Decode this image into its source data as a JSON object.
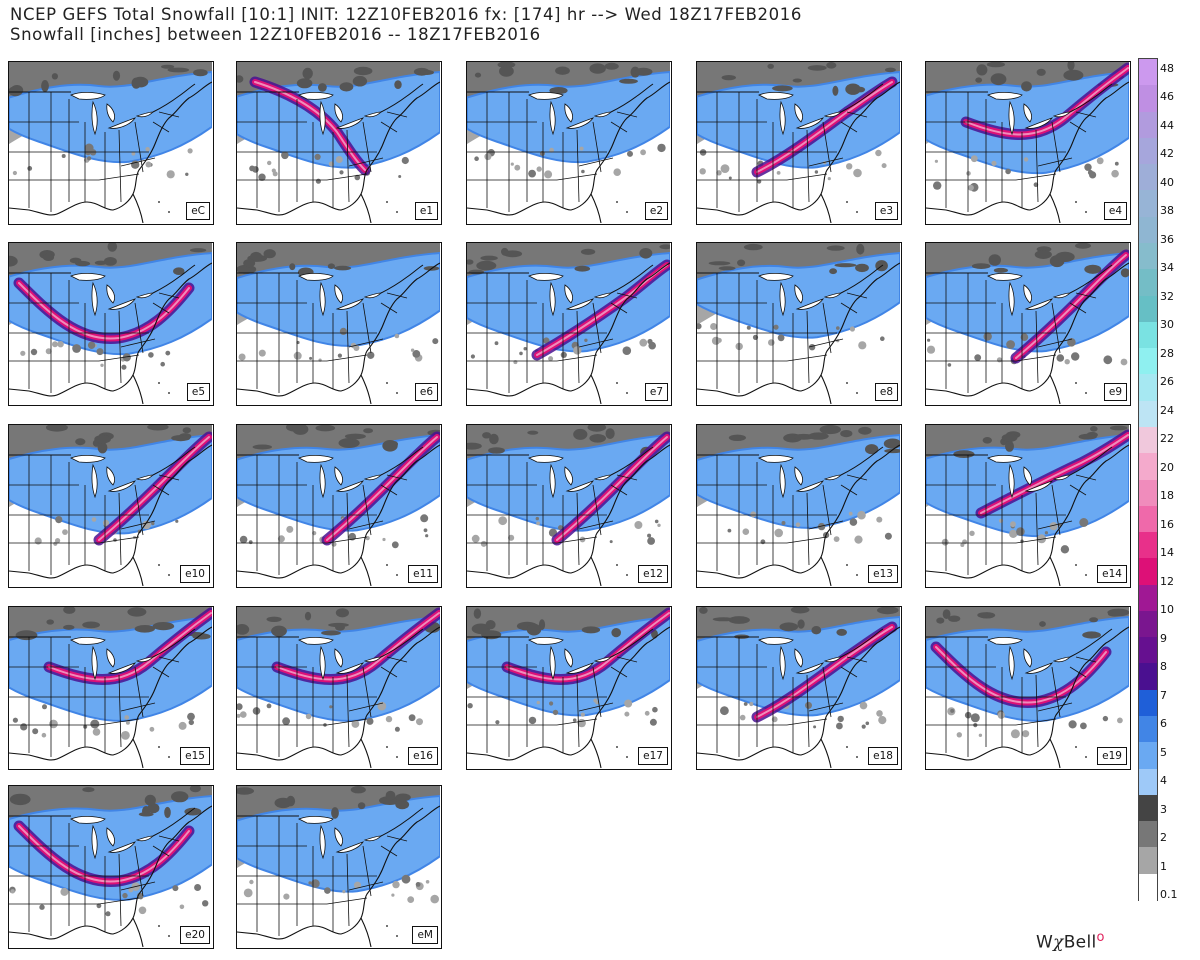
{
  "header": {
    "line1": "NCEP GEFS Total Snowfall [10:1] INIT: 12Z10FEB2016 fx: [174] hr --> Wed 18Z17FEB2016",
    "line2": "Snowfall [inches] between 12Z10FEB2016 -- 18Z17FEB2016"
  },
  "panels": [
    {
      "label": "eC",
      "snow": {
        "base": 0.45,
        "band": "none"
      }
    },
    {
      "label": "e1",
      "snow": {
        "base": 0.55,
        "band": "west"
      }
    },
    {
      "label": "e2",
      "snow": {
        "base": 0.45,
        "band": "none"
      }
    },
    {
      "label": "e3",
      "snow": {
        "base": 0.55,
        "band": "appalachian"
      }
    },
    {
      "label": "e4",
      "snow": {
        "base": 0.65,
        "band": "coastal-long"
      }
    },
    {
      "label": "e5",
      "snow": {
        "base": 0.65,
        "band": "southern-arc"
      }
    },
    {
      "label": "e6",
      "snow": {
        "base": 0.5,
        "band": "none"
      }
    },
    {
      "label": "e7",
      "snow": {
        "base": 0.6,
        "band": "diagonal"
      }
    },
    {
      "label": "e8",
      "snow": {
        "base": 0.35,
        "band": "none"
      }
    },
    {
      "label": "e9",
      "snow": {
        "base": 0.6,
        "band": "coastal"
      }
    },
    {
      "label": "e10",
      "snow": {
        "base": 0.6,
        "band": "coastal"
      }
    },
    {
      "label": "e11",
      "snow": {
        "base": 0.55,
        "band": "coastal"
      }
    },
    {
      "label": "e12",
      "snow": {
        "base": 0.55,
        "band": "coastal"
      }
    },
    {
      "label": "e13",
      "snow": {
        "base": 0.5,
        "band": "none"
      }
    },
    {
      "label": "e14",
      "snow": {
        "base": 0.65,
        "band": "diagonal-long"
      }
    },
    {
      "label": "e15",
      "snow": {
        "base": 0.7,
        "band": "coastal-long"
      }
    },
    {
      "label": "e16",
      "snow": {
        "base": 0.7,
        "band": "coastal-long"
      }
    },
    {
      "label": "e17",
      "snow": {
        "base": 0.6,
        "band": "coastal-long"
      }
    },
    {
      "label": "e18",
      "snow": {
        "base": 0.6,
        "band": "appalachian"
      }
    },
    {
      "label": "e19",
      "snow": {
        "base": 0.7,
        "band": "southern-arc"
      }
    },
    {
      "label": "e20",
      "snow": {
        "base": 0.7,
        "band": "southern-arc"
      }
    },
    {
      "label": "eM",
      "snow": {
        "base": 0.55,
        "band": "none"
      }
    }
  ],
  "colorbar": {
    "ticks": [
      "48",
      "46",
      "44",
      "42",
      "40",
      "38",
      "36",
      "34",
      "32",
      "30",
      "28",
      "26",
      "24",
      "22",
      "20",
      "18",
      "16",
      "14",
      "12",
      "10",
      "9",
      "8",
      "7",
      "6",
      "5",
      "4",
      "3",
      "2",
      "1",
      "0.1"
    ],
    "colors": [
      "#cc99ee",
      "#bf8fe3",
      "#b19bde",
      "#a6a6dc",
      "#9eaed8",
      "#97b4d6",
      "#8fb6d2",
      "#86bccc",
      "#74bdc6",
      "#66bfc5",
      "#7ae2e2",
      "#8ff0f0",
      "#a6e8f2",
      "#bde4f4",
      "#f0c8dc",
      "#f4aacc",
      "#f08cbc",
      "#ef69aa",
      "#e8308a",
      "#dd1077",
      "#a01894",
      "#7a168f",
      "#661090",
      "#4a1090",
      "#1f5fd8",
      "#4185e6",
      "#6aa9f2",
      "#9ec9f8",
      "#444444",
      "#777777",
      "#a6a6a6",
      "#ffffff"
    ]
  },
  "logo": {
    "text_w": "W",
    "text_chi": "χ",
    "text_bell": "Bell"
  }
}
